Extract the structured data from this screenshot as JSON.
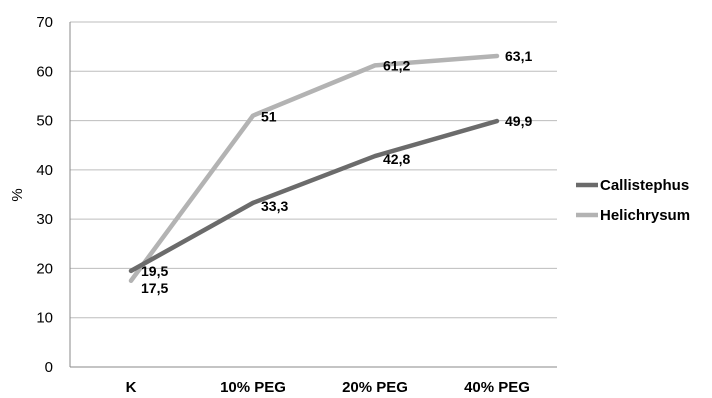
{
  "chart_data": {
    "type": "line",
    "categories": [
      "K",
      "10% PEG",
      "20% PEG",
      "40% PEG"
    ],
    "ylabel": "%",
    "xlabel": "",
    "ylim": [
      0,
      70
    ],
    "yticks": [
      0,
      10,
      20,
      30,
      40,
      50,
      60,
      70
    ],
    "grid": true,
    "legend_position": "right",
    "series": [
      {
        "name": "Callistephus",
        "values": [
          19.5,
          33.3,
          42.8,
          49.9
        ],
        "labels": [
          "19,5",
          "33,3",
          "42,8",
          "49,9"
        ],
        "color": "#6b6b6b"
      },
      {
        "name": "Helichrysum",
        "values": [
          17.5,
          51,
          61.2,
          63.1
        ],
        "labels": [
          "17,5",
          "51",
          "61,2",
          "63,1"
        ],
        "color": "#b3b3b3"
      }
    ]
  }
}
